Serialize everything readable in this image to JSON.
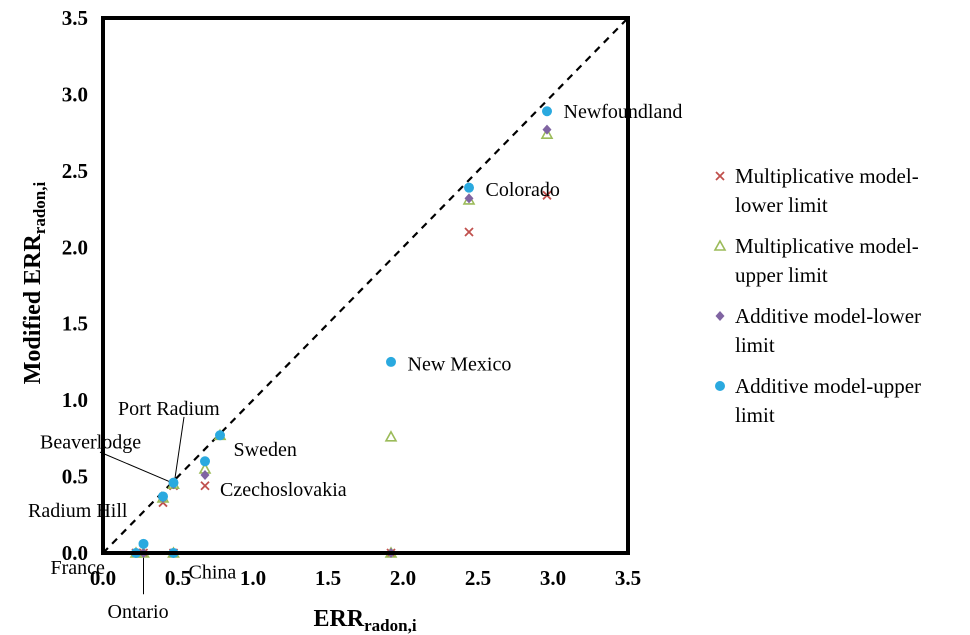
{
  "chart_data": {
    "type": "scatter",
    "xlabel_main": "ERR",
    "xlabel_sub": "radon,i",
    "ylabel_main": "Modified ERR",
    "ylabel_sub": "radon,i",
    "xlim": [
      0,
      3.5
    ],
    "ylim": [
      0,
      3.5
    ],
    "x_ticks": [
      "0.0",
      "0.5",
      "1.0",
      "1.5",
      "2.0",
      "2.5",
      "3.0",
      "3.5"
    ],
    "y_ticks": [
      "0.0",
      "0.5",
      "1.0",
      "1.5",
      "2.0",
      "2.5",
      "3.0",
      "3.5"
    ],
    "reference_line": {
      "style": "dashed",
      "from": [
        0,
        0
      ],
      "to": [
        3.5,
        3.5
      ]
    },
    "legend_position": "right",
    "series": [
      {
        "name": "Multiplicative model-lower limit",
        "legend_lines": [
          "Multiplicative model-",
          "lower limit"
        ],
        "marker": "x",
        "color": "#c0504d",
        "points": [
          [
            0.22,
            0.0
          ],
          [
            0.27,
            0.0
          ],
          [
            0.47,
            0.0
          ],
          [
            1.92,
            0.0
          ],
          [
            0.4,
            0.33
          ],
          [
            0.47,
            0.44
          ],
          [
            0.68,
            0.44
          ],
          [
            2.44,
            2.1
          ],
          [
            2.96,
            2.34
          ]
        ]
      },
      {
        "name": "Multiplicative model-upper limit",
        "legend_lines": [
          "Multiplicative model-",
          "upper limit"
        ],
        "marker": "triangle",
        "color": "#9bbb59",
        "points": [
          [
            0.22,
            0.0
          ],
          [
            0.27,
            0.0
          ],
          [
            0.47,
            0.0
          ],
          [
            1.92,
            0.0
          ],
          [
            0.4,
            0.36
          ],
          [
            0.47,
            0.45
          ],
          [
            0.68,
            0.55
          ],
          [
            0.78,
            0.77
          ],
          [
            1.92,
            0.76
          ],
          [
            2.44,
            2.31
          ],
          [
            2.96,
            2.74
          ]
        ]
      },
      {
        "name": "Additive model-lower limit",
        "legend_lines": [
          "Additive model-lower",
          "limit"
        ],
        "marker": "diamond",
        "color": "#8064a2",
        "points": [
          [
            0.22,
            0.0
          ],
          [
            0.27,
            0.0
          ],
          [
            0.47,
            0.0
          ],
          [
            1.92,
            0.0
          ],
          [
            0.4,
            0.36
          ],
          [
            0.47,
            0.45
          ],
          [
            0.68,
            0.51
          ],
          [
            0.78,
            0.77
          ],
          [
            2.44,
            2.32
          ],
          [
            2.96,
            2.77
          ]
        ]
      },
      {
        "name": "Additive model-upper limit",
        "legend_lines": [
          "Additive model-upper",
          "limit"
        ],
        "marker": "circle",
        "color": "#2aa9df",
        "points": [
          [
            0.22,
            0.0
          ],
          [
            0.27,
            0.06
          ],
          [
            0.47,
            0.0
          ],
          [
            0.4,
            0.37
          ],
          [
            0.47,
            0.46
          ],
          [
            0.68,
            0.6
          ],
          [
            0.78,
            0.77
          ],
          [
            1.92,
            1.25
          ],
          [
            2.44,
            2.39
          ],
          [
            2.96,
            2.89
          ]
        ]
      }
    ],
    "annotations": [
      {
        "text": "Newfoundland",
        "x": 3.07,
        "y": 2.89
      },
      {
        "text": "Colorado",
        "x": 2.55,
        "y": 2.38
      },
      {
        "text": "New Mexico",
        "x": 2.03,
        "y": 1.24
      },
      {
        "text": "Sweden",
        "x": 0.87,
        "y": 0.68
      },
      {
        "text": "Czechoslovakia",
        "x": 0.78,
        "y": 0.42
      },
      {
        "text": "Port Radium",
        "x": 0.1,
        "y": 0.95
      },
      {
        "text": "Beaverlodge",
        "x": -0.42,
        "y": 0.73
      },
      {
        "text": "Radium Hill",
        "x": -0.5,
        "y": 0.28
      },
      {
        "text": "France",
        "x": -0.35,
        "y": -0.09
      },
      {
        "text": "China",
        "x": 0.57,
        "y": -0.12
      },
      {
        "text": "Ontario",
        "x": 0.03,
        "y": -0.38
      }
    ],
    "leader_lines": [
      {
        "from": [
          0.54,
          0.89
        ],
        "to": [
          0.48,
          0.49
        ]
      },
      {
        "from": [
          -0.02,
          0.66
        ],
        "to": [
          0.46,
          0.46
        ]
      },
      {
        "from": [
          0.27,
          0.0
        ],
        "to": [
          0.27,
          -0.27
        ]
      }
    ]
  }
}
